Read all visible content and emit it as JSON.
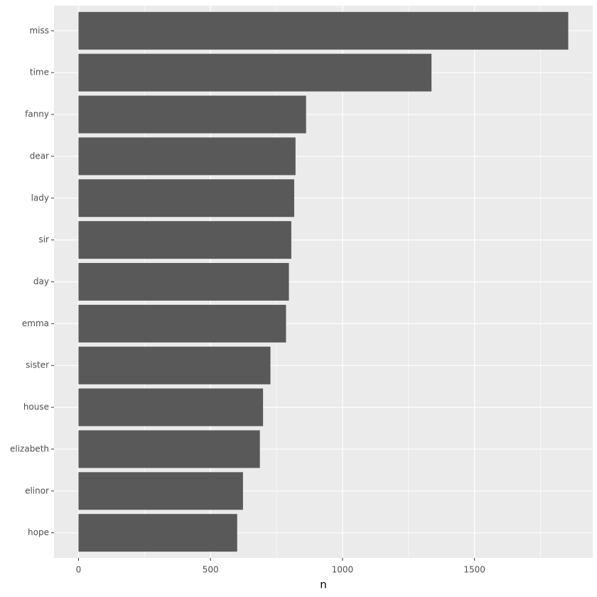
{
  "chart_data": {
    "type": "barh",
    "categories": [
      "miss",
      "time",
      "fanny",
      "dear",
      "lady",
      "sir",
      "day",
      "emma",
      "sister",
      "house",
      "elizabeth",
      "elinor",
      "hope"
    ],
    "values": [
      1855,
      1337,
      862,
      822,
      817,
      806,
      797,
      786,
      727,
      699,
      687,
      623,
      601
    ],
    "color": "#595959",
    "xlabel": "n",
    "xlim": [
      -92.75,
      1947.75
    ],
    "xticks": [
      0,
      500,
      1000,
      1500
    ],
    "x_minor_ticks": [
      250,
      750,
      1250,
      1750
    ],
    "grid": true
  }
}
